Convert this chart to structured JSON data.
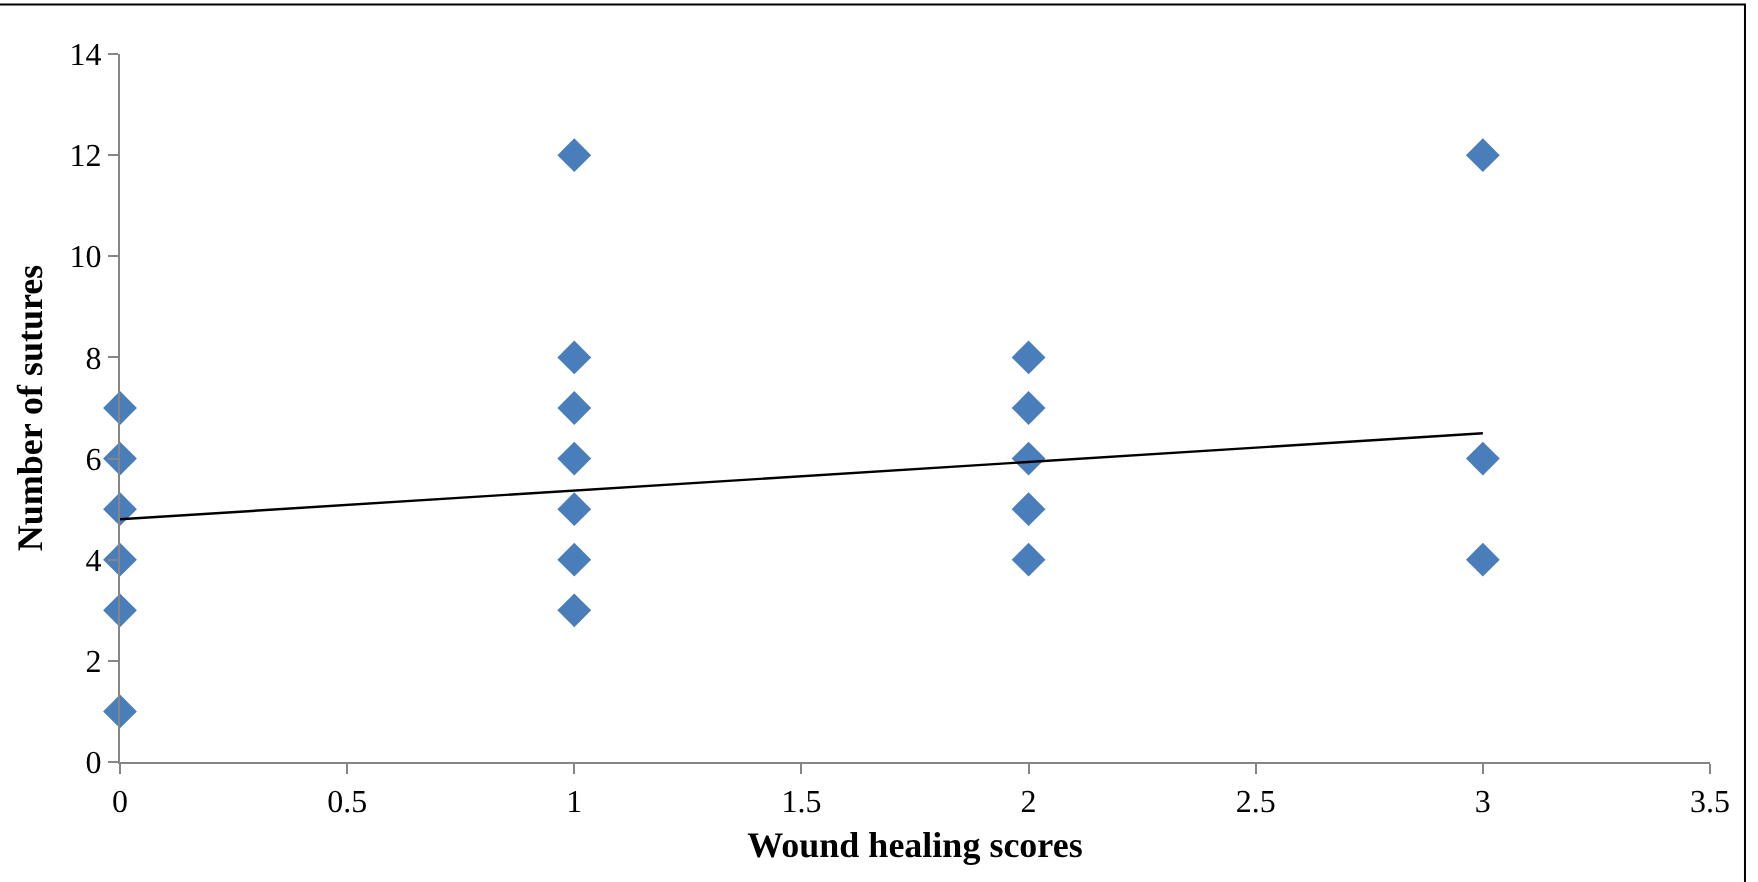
{
  "chart_data": {
    "type": "scatter",
    "xlabel": "Wound healing scores",
    "ylabel": "Number of sutures",
    "series": [
      {
        "color": "#4a7ebb",
        "marker": "diamond",
        "x": [
          0,
          0,
          0,
          0,
          0,
          0,
          1,
          1,
          1,
          1,
          1,
          1,
          1,
          2,
          2,
          2,
          2,
          2,
          3,
          3,
          3
        ],
        "values": [
          7,
          6,
          5,
          4,
          3,
          1,
          12,
          8,
          7,
          6,
          5,
          4,
          3,
          8,
          7,
          6,
          5,
          4,
          12,
          6,
          4
        ]
      },
      {
        "type": "line",
        "color": "#000000",
        "marker": "none",
        "x": [
          0,
          3
        ],
        "values": [
          4.8,
          6.5
        ]
      }
    ],
    "xlim": [
      0,
      3.5
    ],
    "xticks": [
      0,
      0.5,
      1,
      1.5,
      2,
      2.5,
      3,
      3.5
    ],
    "ylim": [
      0,
      14
    ],
    "yticks": [
      0,
      2,
      4,
      6,
      8,
      10,
      12,
      14
    ],
    "legend": false
  }
}
